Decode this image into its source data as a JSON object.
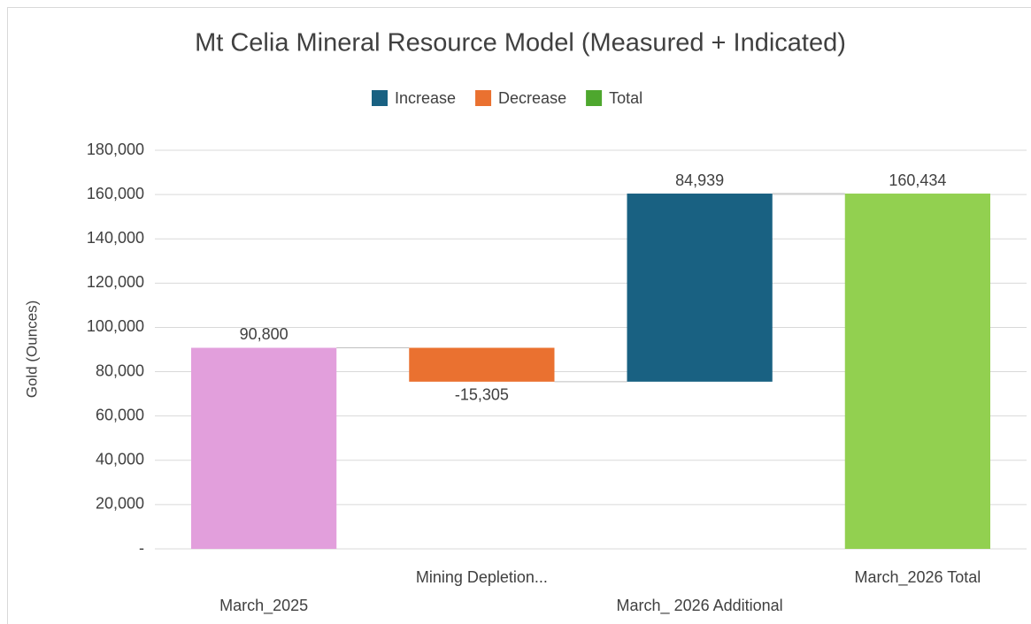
{
  "chart_data": {
    "type": "waterfall",
    "title": "Mt Celia Mineral Resource Model (Measured + Indicated)",
    "y_label": "Gold (Ounces)",
    "categories": [
      "March_2025",
      "Mining Depletion...",
      "March_ 2026 Additional",
      "March_2026 Total"
    ],
    "values": [
      90800,
      -15305,
      84939,
      160434
    ],
    "value_labels": [
      "90,800",
      "-15,305",
      "84,939",
      "160,434"
    ],
    "is_total": [
      true,
      false,
      false,
      true
    ],
    "bar_colors": [
      "#e29fdc",
      "#ea7130",
      "#196182",
      "#92d050"
    ],
    "legend": [
      {
        "name": "Increase",
        "color": "#196182"
      },
      {
        "name": "Decrease",
        "color": "#ea7130"
      },
      {
        "name": "Total",
        "color": "#4ea72e"
      }
    ],
    "ylim": [
      0,
      180000
    ],
    "yticks": [
      {
        "value": 0,
        "label": "-"
      },
      {
        "value": 20000,
        "label": "20,000"
      },
      {
        "value": 40000,
        "label": "40,000"
      },
      {
        "value": 60000,
        "label": "60,000"
      },
      {
        "value": 80000,
        "label": "80,000"
      },
      {
        "value": 100000,
        "label": "100,000"
      },
      {
        "value": 120000,
        "label": "120,000"
      },
      {
        "value": 140000,
        "label": "140,000"
      },
      {
        "value": 160000,
        "label": "160,000"
      },
      {
        "value": 180000,
        "label": "180,000"
      }
    ],
    "grid": true
  }
}
